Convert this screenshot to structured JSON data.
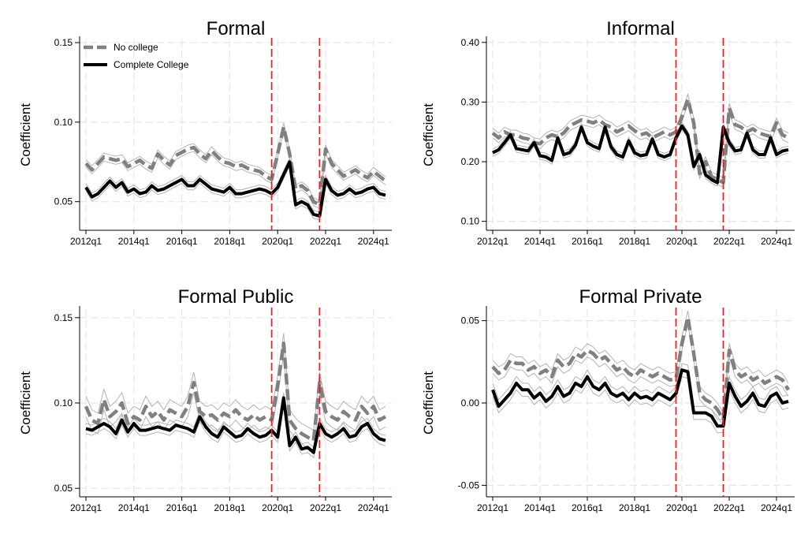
{
  "colors": {
    "no_college": "#808080",
    "complete_college": "#000000",
    "ci_band": "#b3b3b3",
    "event_line": "#e8212a",
    "grid": "#e6e6e6"
  },
  "legend": {
    "no_college": "No college",
    "complete_college": "Complete College"
  },
  "chart_data": [
    {
      "type": "line",
      "title": "Formal",
      "ylabel": "Coefficient",
      "ylim": [
        0.032,
        0.152
      ],
      "yticks": [
        0.05,
        0.1,
        0.15
      ],
      "ytick_labels": [
        "0.05",
        "0.10",
        "0.15"
      ],
      "xlim": [
        0,
        50
      ],
      "xticks": [
        0,
        8,
        16,
        24,
        32,
        40,
        48
      ],
      "xtick_labels": [
        "2012q1",
        "2014q1",
        "2016q1",
        "2018q1",
        "2020q1",
        "2022q1",
        "2024q1"
      ],
      "event_lines": [
        31,
        39
      ],
      "legend_position": "top-left",
      "grid": true,
      "series": [
        {
          "key": "no_college",
          "name": "No college",
          "style": "dashed",
          "ci": 0.0025,
          "values": [
            0.074,
            0.07,
            0.074,
            0.078,
            0.077,
            0.076,
            0.077,
            0.072,
            0.074,
            0.076,
            0.073,
            0.071,
            0.08,
            0.076,
            0.073,
            0.079,
            0.081,
            0.083,
            0.084,
            0.08,
            0.077,
            0.082,
            0.078,
            0.075,
            0.074,
            0.072,
            0.073,
            0.071,
            0.07,
            0.069,
            0.066,
            0.064,
            0.08,
            0.097,
            0.08,
            0.058,
            0.06,
            0.057,
            0.05,
            0.048,
            0.083,
            0.074,
            0.07,
            0.066,
            0.068,
            0.07,
            0.067,
            0.065,
            0.069,
            0.066,
            0.063
          ]
        },
        {
          "key": "complete_college",
          "name": "Complete College",
          "style": "solid",
          "ci": 0.0025,
          "values": [
            0.059,
            0.053,
            0.055,
            0.059,
            0.063,
            0.059,
            0.062,
            0.056,
            0.058,
            0.055,
            0.056,
            0.06,
            0.057,
            0.058,
            0.06,
            0.062,
            0.064,
            0.06,
            0.06,
            0.064,
            0.061,
            0.058,
            0.057,
            0.056,
            0.059,
            0.055,
            0.055,
            0.056,
            0.057,
            0.058,
            0.057,
            0.055,
            0.059,
            0.067,
            0.075,
            0.048,
            0.05,
            0.048,
            0.042,
            0.041,
            0.064,
            0.057,
            0.054,
            0.055,
            0.058,
            0.055,
            0.056,
            0.058,
            0.059,
            0.055,
            0.054
          ]
        }
      ]
    },
    {
      "type": "line",
      "title": "Informal",
      "ylabel": "Coefficient",
      "ylim": [
        0.085,
        0.405
      ],
      "yticks": [
        0.1,
        0.2,
        0.3,
        0.4
      ],
      "ytick_labels": [
        "0.10",
        "0.20",
        "0.30",
        "0.40"
      ],
      "xlim": [
        0,
        50
      ],
      "xticks": [
        0,
        8,
        16,
        24,
        32,
        40,
        48
      ],
      "xtick_labels": [
        "2012q1",
        "2014q1",
        "2016q1",
        "2018q1",
        "2020q1",
        "2022q1",
        "2024q1"
      ],
      "event_lines": [
        31,
        39
      ],
      "grid": true,
      "series": [
        {
          "key": "no_college",
          "name": "No college",
          "style": "dashed",
          "ci": 0.008,
          "values": [
            0.248,
            0.24,
            0.25,
            0.245,
            0.245,
            0.24,
            0.238,
            0.232,
            0.23,
            0.24,
            0.245,
            0.242,
            0.248,
            0.26,
            0.265,
            0.27,
            0.268,
            0.265,
            0.27,
            0.262,
            0.258,
            0.25,
            0.255,
            0.26,
            0.252,
            0.245,
            0.248,
            0.24,
            0.245,
            0.25,
            0.245,
            0.25,
            0.275,
            0.305,
            0.265,
            0.18,
            0.2,
            0.175,
            0.17,
            0.165,
            0.29,
            0.262,
            0.258,
            0.25,
            0.255,
            0.248,
            0.245,
            0.242,
            0.265,
            0.245,
            0.24
          ]
        },
        {
          "key": "complete_college",
          "name": "Complete College",
          "style": "solid",
          "ci": 0.006,
          "values": [
            0.215,
            0.22,
            0.232,
            0.245,
            0.222,
            0.22,
            0.218,
            0.232,
            0.21,
            0.208,
            0.202,
            0.24,
            0.212,
            0.215,
            0.228,
            0.258,
            0.232,
            0.226,
            0.222,
            0.258,
            0.225,
            0.212,
            0.208,
            0.235,
            0.215,
            0.21,
            0.212,
            0.238,
            0.212,
            0.208,
            0.212,
            0.24,
            0.26,
            0.245,
            0.192,
            0.212,
            0.178,
            0.17,
            0.165,
            0.258,
            0.232,
            0.218,
            0.22,
            0.248,
            0.22,
            0.212,
            0.212,
            0.24,
            0.212,
            0.218,
            0.22
          ]
        }
      ]
    },
    {
      "type": "line",
      "title": "Formal Public",
      "ylabel": "Coefficient",
      "ylim": [
        0.045,
        0.155
      ],
      "yticks": [
        0.05,
        0.1,
        0.15
      ],
      "ytick_labels": [
        "0.05",
        "0.10",
        "0.15"
      ],
      "xlim": [
        0,
        50
      ],
      "xticks": [
        0,
        8,
        16,
        24,
        32,
        40,
        48
      ],
      "xtick_labels": [
        "2012q1",
        "2014q1",
        "2016q1",
        "2018q1",
        "2020q1",
        "2022q1",
        "2024q1"
      ],
      "event_lines": [
        31,
        39
      ],
      "grid": true,
      "series": [
        {
          "key": "no_college",
          "name": "No college",
          "style": "dashed",
          "ci": 0.006,
          "values": [
            0.098,
            0.09,
            0.088,
            0.102,
            0.092,
            0.095,
            0.1,
            0.088,
            0.092,
            0.09,
            0.098,
            0.092,
            0.095,
            0.09,
            0.096,
            0.094,
            0.092,
            0.098,
            0.112,
            0.095,
            0.092,
            0.093,
            0.09,
            0.094,
            0.092,
            0.096,
            0.092,
            0.09,
            0.093,
            0.09,
            0.092,
            0.09,
            0.11,
            0.135,
            0.09,
            0.085,
            0.082,
            0.08,
            0.078,
            0.112,
            0.095,
            0.092,
            0.09,
            0.095,
            0.092,
            0.09,
            0.098,
            0.094,
            0.098,
            0.09,
            0.092
          ]
        },
        {
          "key": "complete_college",
          "name": "Complete College",
          "style": "solid",
          "ci": 0.003,
          "values": [
            0.085,
            0.084,
            0.086,
            0.088,
            0.086,
            0.082,
            0.09,
            0.083,
            0.088,
            0.084,
            0.084,
            0.085,
            0.086,
            0.085,
            0.084,
            0.087,
            0.086,
            0.085,
            0.083,
            0.092,
            0.086,
            0.082,
            0.08,
            0.086,
            0.083,
            0.08,
            0.081,
            0.085,
            0.082,
            0.08,
            0.081,
            0.084,
            0.08,
            0.103,
            0.075,
            0.08,
            0.073,
            0.074,
            0.071,
            0.088,
            0.082,
            0.08,
            0.082,
            0.085,
            0.08,
            0.081,
            0.086,
            0.088,
            0.082,
            0.079,
            0.078
          ]
        }
      ]
    },
    {
      "type": "line",
      "title": "Formal Private",
      "ylabel": "Coefficient",
      "ylim": [
        -0.057,
        0.057
      ],
      "yticks": [
        -0.05,
        0.0,
        0.05
      ],
      "ytick_labels": [
        "-0.05",
        "0.00",
        "0.05"
      ],
      "xlim": [
        0,
        50
      ],
      "xticks": [
        0,
        8,
        16,
        24,
        32,
        40,
        48
      ],
      "xtick_labels": [
        "2012q1",
        "2014q1",
        "2016q1",
        "2018q1",
        "2020q1",
        "2022q1",
        "2024q1"
      ],
      "event_lines": [
        31,
        39
      ],
      "grid": true,
      "series": [
        {
          "key": "no_college",
          "name": "No college",
          "style": "dashed",
          "ci": 0.004,
          "values": [
            0.022,
            0.018,
            0.02,
            0.026,
            0.024,
            0.024,
            0.02,
            0.022,
            0.018,
            0.02,
            0.016,
            0.026,
            0.022,
            0.024,
            0.03,
            0.028,
            0.032,
            0.03,
            0.026,
            0.028,
            0.024,
            0.02,
            0.022,
            0.018,
            0.016,
            0.02,
            0.018,
            0.016,
            0.018,
            0.016,
            0.014,
            0.015,
            0.036,
            0.052,
            0.03,
            0.006,
            0.002,
            0.0,
            -0.004,
            -0.01,
            0.032,
            0.02,
            0.016,
            0.018,
            0.014,
            0.016,
            0.012,
            0.014,
            0.016,
            0.014,
            0.008
          ]
        },
        {
          "key": "complete_college",
          "name": "Complete College",
          "style": "solid",
          "ci": 0.004,
          "values": [
            0.008,
            -0.002,
            0.002,
            0.006,
            0.012,
            0.008,
            0.008,
            0.003,
            0.006,
            0.001,
            0.004,
            0.01,
            0.004,
            0.006,
            0.012,
            0.01,
            0.016,
            0.01,
            0.008,
            0.012,
            0.006,
            0.004,
            0.006,
            0.002,
            0.006,
            0.003,
            0.004,
            0.002,
            0.006,
            0.004,
            0.002,
            0.006,
            0.02,
            0.019,
            -0.006,
            -0.006,
            -0.006,
            -0.008,
            -0.014,
            -0.014,
            0.012,
            0.004,
            -0.002,
            0.001,
            0.006,
            -0.001,
            -0.002,
            0.004,
            0.006,
            0.0,
            0.001
          ]
        }
      ]
    }
  ]
}
